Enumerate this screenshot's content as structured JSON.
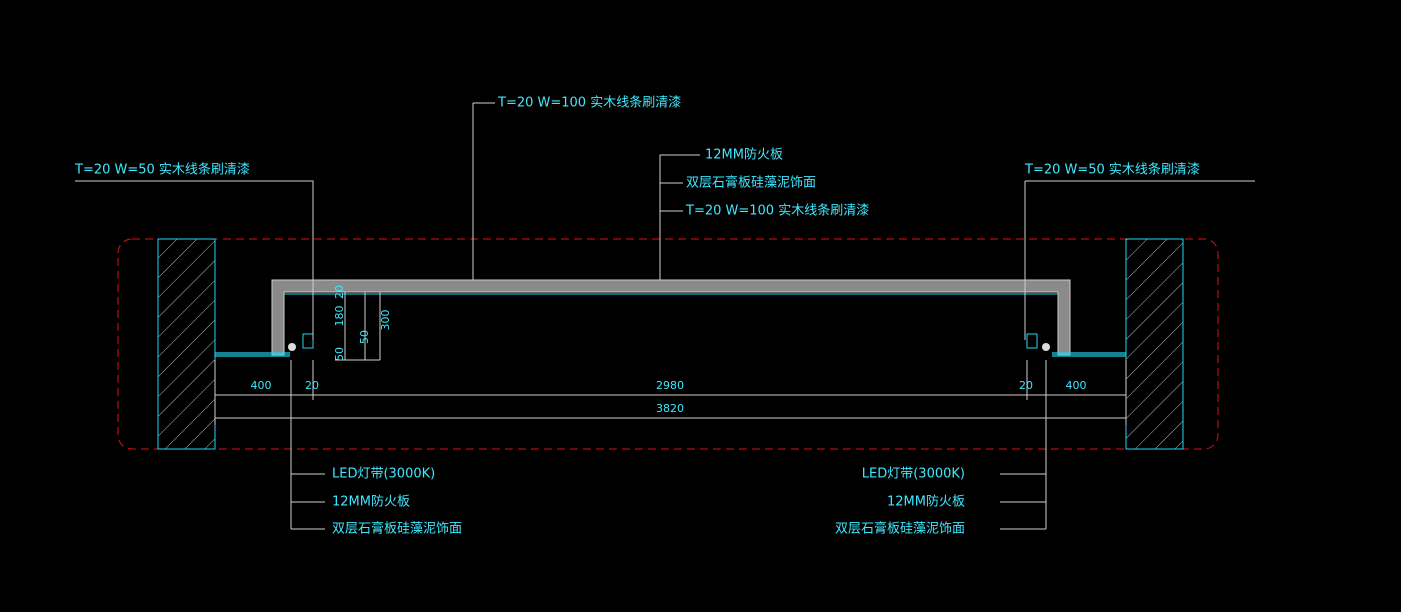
{
  "annotations": {
    "top_center": "T=20  W=100  实木线条刷清漆",
    "left_top": "T=20  W=50  实木线条刷清漆",
    "right_top": "T=20  W=50  实木线条刷清漆",
    "center_stack": [
      "12MM防火板",
      "双层石膏板硅藻泥饰面",
      "T=20  W=100  实木线条刷清漆"
    ],
    "left_bottom": [
      "LED灯带(3000K)",
      "12MM防火板",
      "双层石膏板硅藻泥饰面"
    ],
    "right_bottom": [
      "LED灯带(3000K)",
      "12MM防火板",
      "双层石膏板硅藻泥饰面"
    ]
  },
  "dimensions": {
    "horizontal": [
      "400",
      "20",
      "2980",
      "20",
      "400"
    ],
    "total": "3820",
    "vertical": [
      "20",
      "180",
      "50",
      "50",
      "300"
    ]
  }
}
